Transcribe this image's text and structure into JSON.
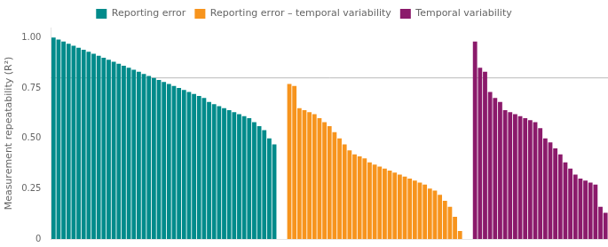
{
  "chart_data": {
    "type": "bar",
    "ylabel": "Measurement repeatability (R²)",
    "series": [
      {
        "name": "Reporting error",
        "color": "#008B8B",
        "values": [
          1.0,
          0.99,
          0.98,
          0.97,
          0.96,
          0.95,
          0.94,
          0.93,
          0.92,
          0.91,
          0.9,
          0.89,
          0.88,
          0.87,
          0.86,
          0.85,
          0.84,
          0.83,
          0.82,
          0.81,
          0.8,
          0.79,
          0.78,
          0.77,
          0.76,
          0.75,
          0.74,
          0.73,
          0.72,
          0.71,
          0.7,
          0.68,
          0.67,
          0.66,
          0.65,
          0.64,
          0.63,
          0.62,
          0.61,
          0.6,
          0.58,
          0.56,
          0.54,
          0.5,
          0.47
        ]
      },
      {
        "name": "Reporting error – temporal variability",
        "color": "#F7941D",
        "values": [
          0.77,
          0.76,
          0.65,
          0.64,
          0.63,
          0.62,
          0.6,
          0.58,
          0.56,
          0.53,
          0.5,
          0.47,
          0.44,
          0.42,
          0.41,
          0.4,
          0.38,
          0.37,
          0.36,
          0.35,
          0.34,
          0.33,
          0.32,
          0.31,
          0.3,
          0.29,
          0.28,
          0.27,
          0.25,
          0.24,
          0.22,
          0.19,
          0.16,
          0.11,
          0.04
        ]
      },
      {
        "name": "Temporal variability",
        "color": "#8B1A6B",
        "values": [
          0.98,
          0.85,
          0.83,
          0.73,
          0.7,
          0.68,
          0.64,
          0.63,
          0.62,
          0.61,
          0.6,
          0.59,
          0.58,
          0.55,
          0.5,
          0.48,
          0.45,
          0.42,
          0.38,
          0.35,
          0.32,
          0.3,
          0.29,
          0.28,
          0.27,
          0.16,
          0.13
        ]
      }
    ],
    "reference_line": {
      "value": 0.8,
      "color": "#BBBBBB"
    },
    "ylim": [
      0,
      1.05
    ],
    "yticks": [
      0,
      0.25,
      {
        "value": 0.5,
        "label": "0.50"
      },
      0.75,
      {
        "value": 1,
        "label": "1.00"
      }
    ],
    "grid": false,
    "legend": "top",
    "tick_labels": "y"
  }
}
